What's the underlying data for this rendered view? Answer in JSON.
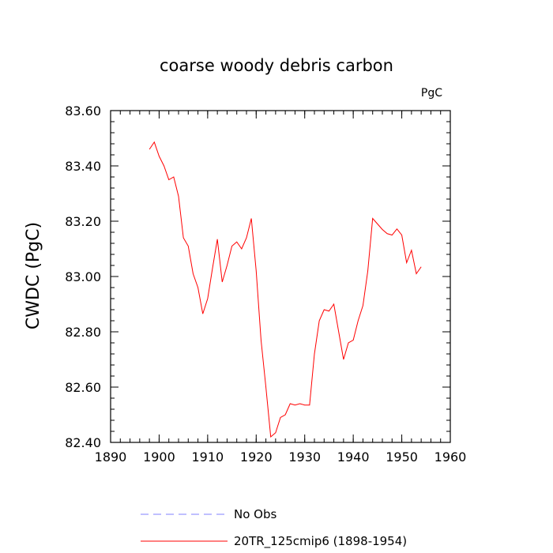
{
  "chart_data": {
    "type": "line",
    "title": "coarse woody debris carbon",
    "units_label": "PgC",
    "ylabel": "CWDC  (PgC)",
    "xlabel": "",
    "xlim": [
      1890,
      1960
    ],
    "ylim": [
      82.4,
      83.6
    ],
    "x_ticks": [
      1890,
      1900,
      1910,
      1920,
      1930,
      1940,
      1950,
      1960
    ],
    "y_ticks": [
      82.4,
      82.6,
      82.8,
      83.0,
      83.2,
      83.4,
      83.6
    ],
    "x_tick_labels": [
      "1890",
      "1900",
      "1910",
      "1920",
      "1930",
      "1940",
      "1950",
      "1960"
    ],
    "y_tick_labels": [
      "82.40",
      "82.60",
      "82.80",
      "83.00",
      "83.20",
      "83.40",
      "83.60"
    ],
    "grid": false,
    "legend_position": "bottom",
    "series": [
      {
        "name": "20TR_125cmip6 (1898-1954)",
        "color": "#ff0000",
        "style": "solid",
        "x": [
          1898,
          1899,
          1900,
          1901,
          1902,
          1903,
          1904,
          1905,
          1906,
          1907,
          1908,
          1909,
          1910,
          1911,
          1912,
          1913,
          1914,
          1915,
          1916,
          1917,
          1918,
          1919,
          1920,
          1921,
          1922,
          1923,
          1924,
          1925,
          1926,
          1927,
          1928,
          1929,
          1930,
          1931,
          1932,
          1933,
          1934,
          1935,
          1936,
          1937,
          1938,
          1939,
          1940,
          1941,
          1942,
          1943,
          1944,
          1945,
          1946,
          1947,
          1948,
          1949,
          1950,
          1951,
          1952,
          1953,
          1954
        ],
        "values": [
          83.46,
          83.486,
          83.435,
          83.4,
          83.35,
          83.36,
          83.29,
          83.14,
          83.11,
          83.01,
          82.96,
          82.865,
          82.92,
          83.03,
          83.135,
          82.98,
          83.04,
          83.11,
          83.125,
          83.1,
          83.14,
          83.21,
          83.02,
          82.77,
          82.6,
          82.42,
          82.435,
          82.49,
          82.5,
          82.54,
          82.535,
          82.54,
          82.535,
          82.535,
          82.72,
          82.84,
          82.88,
          82.875,
          82.9,
          82.8,
          82.7,
          82.76,
          82.77,
          82.84,
          82.895,
          83.02,
          83.21,
          83.19,
          83.17,
          83.155,
          83.15,
          83.172,
          83.15,
          83.05,
          83.095,
          83.01,
          83.035
        ]
      },
      {
        "name": "No Obs",
        "color": "#8080ff",
        "style": "dashed",
        "x": [],
        "values": []
      }
    ]
  }
}
